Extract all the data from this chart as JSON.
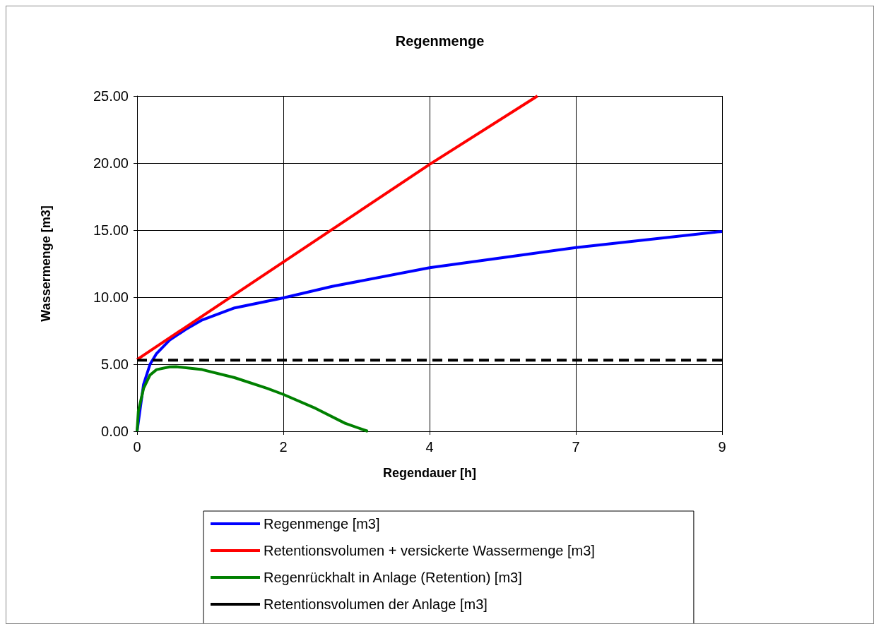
{
  "chart_data": {
    "type": "line",
    "title": "Regenmenge",
    "xlabel": "Regendauer [h]",
    "ylabel": "Wassermenge [m3]",
    "xlim": [
      0,
      9
    ],
    "xticks": [
      0,
      {
        "value": 2.25,
        "label": "2"
      },
      {
        "value": 4.5,
        "label": "4"
      },
      {
        "value": 6.75,
        "label": "7"
      },
      9
    ],
    "ylim": [
      0,
      25
    ],
    "yticks": [
      {
        "value": 0,
        "label": "0.00"
      },
      {
        "value": 5,
        "label": "5.00"
      },
      {
        "value": 10,
        "label": "10.00"
      },
      {
        "value": 15,
        "label": "15.00"
      },
      {
        "value": 20,
        "label": "20.00"
      },
      {
        "value": 25,
        "label": "25.00"
      }
    ],
    "grid": true,
    "legend": "bottom",
    "marker": "none",
    "series": [
      {
        "name": "Regenmenge [m3]",
        "color": "#0000ff",
        "x": [
          0,
          0.1,
          0.2,
          0.3,
          0.5,
          0.75,
          1,
          1.5,
          2.25,
          3,
          4.5,
          6,
          6.75,
          9
        ],
        "values": [
          0,
          3.5,
          5,
          5.8,
          6.8,
          7.6,
          8.3,
          9.2,
          9.95,
          10.8,
          12.2,
          13.2,
          13.7,
          14.9
        ]
      },
      {
        "name": "Retentionsvolumen + versickerte Wassermenge [m3]",
        "color": "#ff0000",
        "x": [
          0,
          4.5,
          6.16
        ],
        "values": [
          5.35,
          19.9,
          25
        ]
      },
      {
        "name": "Regenrückhalt in Anlage (Retention) [m3]",
        "color": "#008000",
        "x": [
          0,
          0.02,
          0.1,
          0.2,
          0.3,
          0.5,
          0.6,
          1,
          1.5,
          2,
          2.25,
          2.75,
          3.2,
          3.55
        ],
        "values": [
          0,
          1.5,
          3.2,
          4.2,
          4.6,
          4.8,
          4.82,
          4.6,
          4,
          3.2,
          2.75,
          1.7,
          0.6,
          0
        ]
      },
      {
        "name": "Retentionsvolumen der Anlage [m3]",
        "color": "#000000",
        "line_style": "dashed",
        "x": [
          0,
          9
        ],
        "values": [
          5.3,
          5.3
        ]
      }
    ]
  }
}
